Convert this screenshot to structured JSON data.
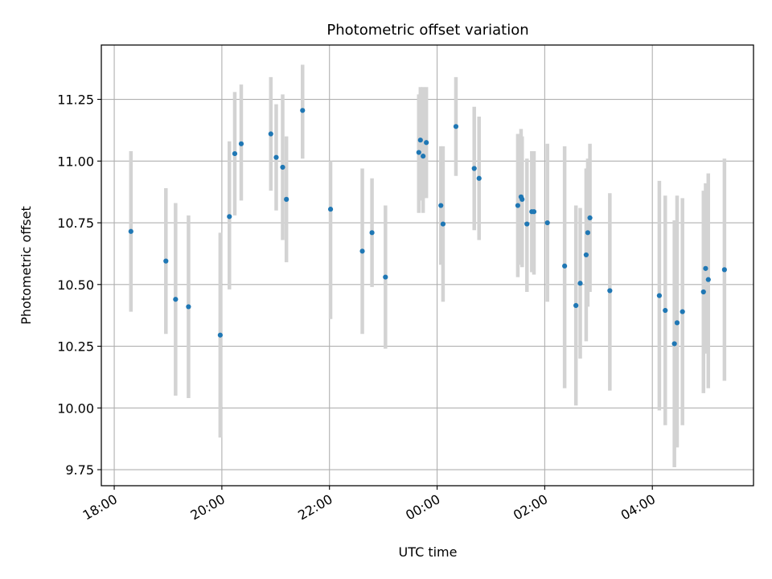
{
  "chart_data": {
    "type": "scatter",
    "title": "Photometric offset variation",
    "xlabel": "UTC time",
    "ylabel": "Photometric offset",
    "grid": true,
    "x_unit": "hours since 00:00 UTC (negative = previous day)",
    "xlim": [
      -6.24,
      5.88
    ],
    "ylim": [
      9.685,
      11.47
    ],
    "x_ticks": [
      {
        "value": -6,
        "label": "18:00"
      },
      {
        "value": -4,
        "label": "20:00"
      },
      {
        "value": -2,
        "label": "22:00"
      },
      {
        "value": 0,
        "label": "00:00"
      },
      {
        "value": 2,
        "label": "02:00"
      },
      {
        "value": 4,
        "label": "04:00"
      }
    ],
    "y_ticks": [
      {
        "value": 9.75,
        "label": "9.75"
      },
      {
        "value": 10.0,
        "label": "10.00"
      },
      {
        "value": 10.25,
        "label": "10.25"
      },
      {
        "value": 10.5,
        "label": "10.50"
      },
      {
        "value": 10.75,
        "label": "10.75"
      },
      {
        "value": 11.0,
        "label": "11.00"
      },
      {
        "value": 11.25,
        "label": "11.25"
      }
    ],
    "colors": {
      "point": "#1f77b4",
      "errorbar": "#d3d3d3",
      "grid": "#b0b0b0",
      "axis": "#000000"
    },
    "points": [
      {
        "x": -5.69,
        "y": 10.715,
        "lo": 10.39,
        "hi": 11.04
      },
      {
        "x": -5.04,
        "y": 10.595,
        "lo": 10.3,
        "hi": 10.89
      },
      {
        "x": -4.86,
        "y": 10.44,
        "lo": 10.05,
        "hi": 10.83
      },
      {
        "x": -4.62,
        "y": 10.41,
        "lo": 10.04,
        "hi": 10.78
      },
      {
        "x": -4.03,
        "y": 10.295,
        "lo": 9.88,
        "hi": 10.71
      },
      {
        "x": -3.86,
        "y": 10.775,
        "lo": 10.48,
        "hi": 11.08
      },
      {
        "x": -3.76,
        "y": 11.03,
        "lo": 10.78,
        "hi": 11.28
      },
      {
        "x": -3.64,
        "y": 11.07,
        "lo": 10.84,
        "hi": 11.31
      },
      {
        "x": -3.09,
        "y": 11.11,
        "lo": 10.88,
        "hi": 11.34
      },
      {
        "x": -2.99,
        "y": 11.015,
        "lo": 10.8,
        "hi": 11.23
      },
      {
        "x": -2.87,
        "y": 10.975,
        "lo": 10.68,
        "hi": 11.27
      },
      {
        "x": -2.8,
        "y": 10.845,
        "lo": 10.59,
        "hi": 11.1
      },
      {
        "x": -2.5,
        "y": 11.205,
        "lo": 11.01,
        "hi": 11.39
      },
      {
        "x": -1.98,
        "y": 10.805,
        "lo": 10.36,
        "hi": 11.0
      },
      {
        "x": -1.39,
        "y": 10.635,
        "lo": 10.3,
        "hi": 10.97
      },
      {
        "x": -1.21,
        "y": 10.71,
        "lo": 10.49,
        "hi": 10.93
      },
      {
        "x": -0.96,
        "y": 10.53,
        "lo": 10.24,
        "hi": 10.82
      },
      {
        "x": -0.34,
        "y": 11.035,
        "lo": 10.79,
        "hi": 11.27
      },
      {
        "x": -0.31,
        "y": 11.085,
        "lo": 10.84,
        "hi": 11.3
      },
      {
        "x": -0.26,
        "y": 11.02,
        "lo": 10.79,
        "hi": 11.3
      },
      {
        "x": -0.2,
        "y": 11.075,
        "lo": 10.85,
        "hi": 11.3
      },
      {
        "x": 0.07,
        "y": 10.82,
        "lo": 10.58,
        "hi": 11.06
      },
      {
        "x": 0.11,
        "y": 10.745,
        "lo": 10.43,
        "hi": 11.06
      },
      {
        "x": 0.35,
        "y": 11.14,
        "lo": 10.94,
        "hi": 11.34
      },
      {
        "x": 0.69,
        "y": 10.97,
        "lo": 10.72,
        "hi": 11.22
      },
      {
        "x": 0.78,
        "y": 10.93,
        "lo": 10.68,
        "hi": 11.18
      },
      {
        "x": 1.5,
        "y": 10.82,
        "lo": 10.53,
        "hi": 11.11
      },
      {
        "x": 1.56,
        "y": 10.855,
        "lo": 10.58,
        "hi": 11.13
      },
      {
        "x": 1.58,
        "y": 10.845,
        "lo": 10.57,
        "hi": 11.1
      },
      {
        "x": 1.67,
        "y": 10.745,
        "lo": 10.47,
        "hi": 11.01
      },
      {
        "x": 1.76,
        "y": 10.795,
        "lo": 10.55,
        "hi": 11.04
      },
      {
        "x": 1.8,
        "y": 10.795,
        "lo": 10.54,
        "hi": 11.04
      },
      {
        "x": 2.05,
        "y": 10.75,
        "lo": 10.43,
        "hi": 11.07
      },
      {
        "x": 2.37,
        "y": 10.575,
        "lo": 10.08,
        "hi": 11.06
      },
      {
        "x": 2.58,
        "y": 10.415,
        "lo": 10.01,
        "hi": 10.82
      },
      {
        "x": 2.66,
        "y": 10.505,
        "lo": 10.2,
        "hi": 10.81
      },
      {
        "x": 2.77,
        "y": 10.62,
        "lo": 10.27,
        "hi": 10.97
      },
      {
        "x": 2.8,
        "y": 10.71,
        "lo": 10.41,
        "hi": 11.01
      },
      {
        "x": 2.84,
        "y": 10.77,
        "lo": 10.47,
        "hi": 11.07
      },
      {
        "x": 3.21,
        "y": 10.475,
        "lo": 10.07,
        "hi": 10.87
      },
      {
        "x": 4.13,
        "y": 10.455,
        "lo": 9.99,
        "hi": 10.92
      },
      {
        "x": 4.24,
        "y": 10.395,
        "lo": 9.93,
        "hi": 10.86
      },
      {
        "x": 4.41,
        "y": 10.26,
        "lo": 9.76,
        "hi": 10.76
      },
      {
        "x": 4.46,
        "y": 10.345,
        "lo": 9.84,
        "hi": 10.86
      },
      {
        "x": 4.56,
        "y": 10.39,
        "lo": 9.93,
        "hi": 10.85
      },
      {
        "x": 4.95,
        "y": 10.47,
        "lo": 10.06,
        "hi": 10.88
      },
      {
        "x": 4.99,
        "y": 10.565,
        "lo": 10.22,
        "hi": 10.91
      },
      {
        "x": 5.04,
        "y": 10.52,
        "lo": 10.08,
        "hi": 10.95
      },
      {
        "x": 5.34,
        "y": 10.56,
        "lo": 10.11,
        "hi": 11.01
      }
    ]
  }
}
